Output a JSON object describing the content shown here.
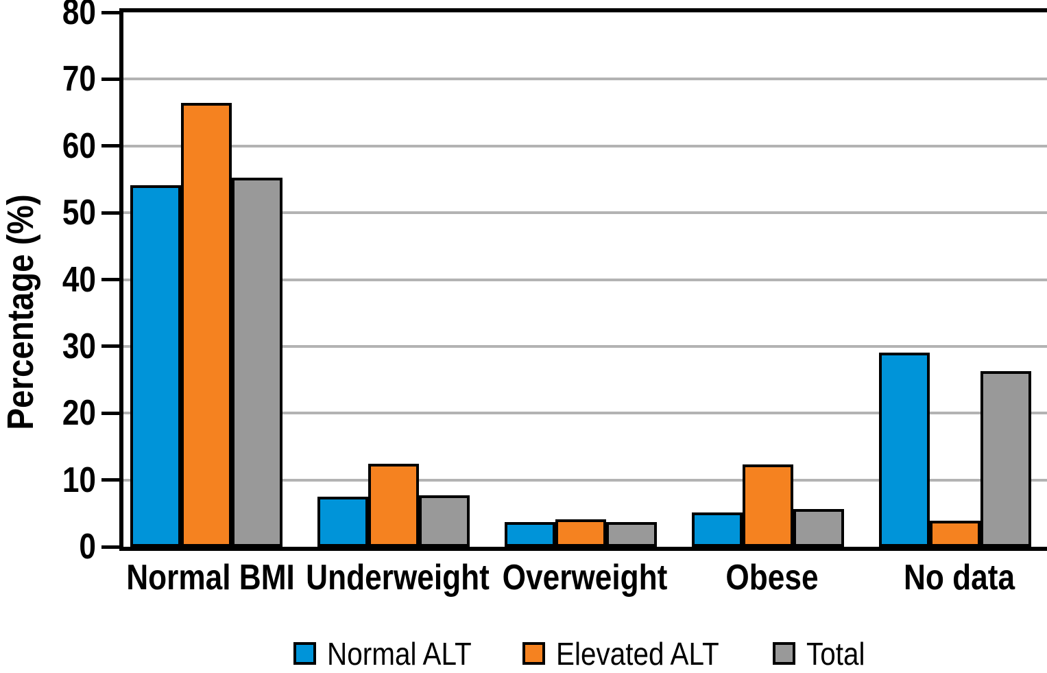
{
  "chart_data": {
    "type": "bar",
    "title": "",
    "xlabel": "",
    "ylabel": "Percentage (%)",
    "ylim": [
      0,
      80
    ],
    "yticks": [
      0,
      10,
      20,
      30,
      40,
      50,
      60,
      70,
      80
    ],
    "grid": "horizontal",
    "legend_position": "bottom",
    "categories": [
      "Normal BMI",
      "Underweight",
      "Overweight",
      "Obese",
      "No data"
    ],
    "series": [
      {
        "name": "Normal ALT",
        "color": "#0094d9",
        "values": [
          54.1,
          7.5,
          3.7,
          5.1,
          29.1
        ]
      },
      {
        "name": "Elevated ALT",
        "color": "#f58220",
        "values": [
          66.4,
          12.4,
          4.1,
          12.3,
          3.9
        ]
      },
      {
        "name": "Total",
        "color": "#999999",
        "values": [
          55.3,
          7.7,
          3.7,
          5.7,
          26.3
        ]
      }
    ]
  },
  "style": {
    "axis_color": "#000000",
    "gridline_color": "#b3b3b3",
    "bar_border_color": "#000000",
    "background": "#ffffff"
  }
}
